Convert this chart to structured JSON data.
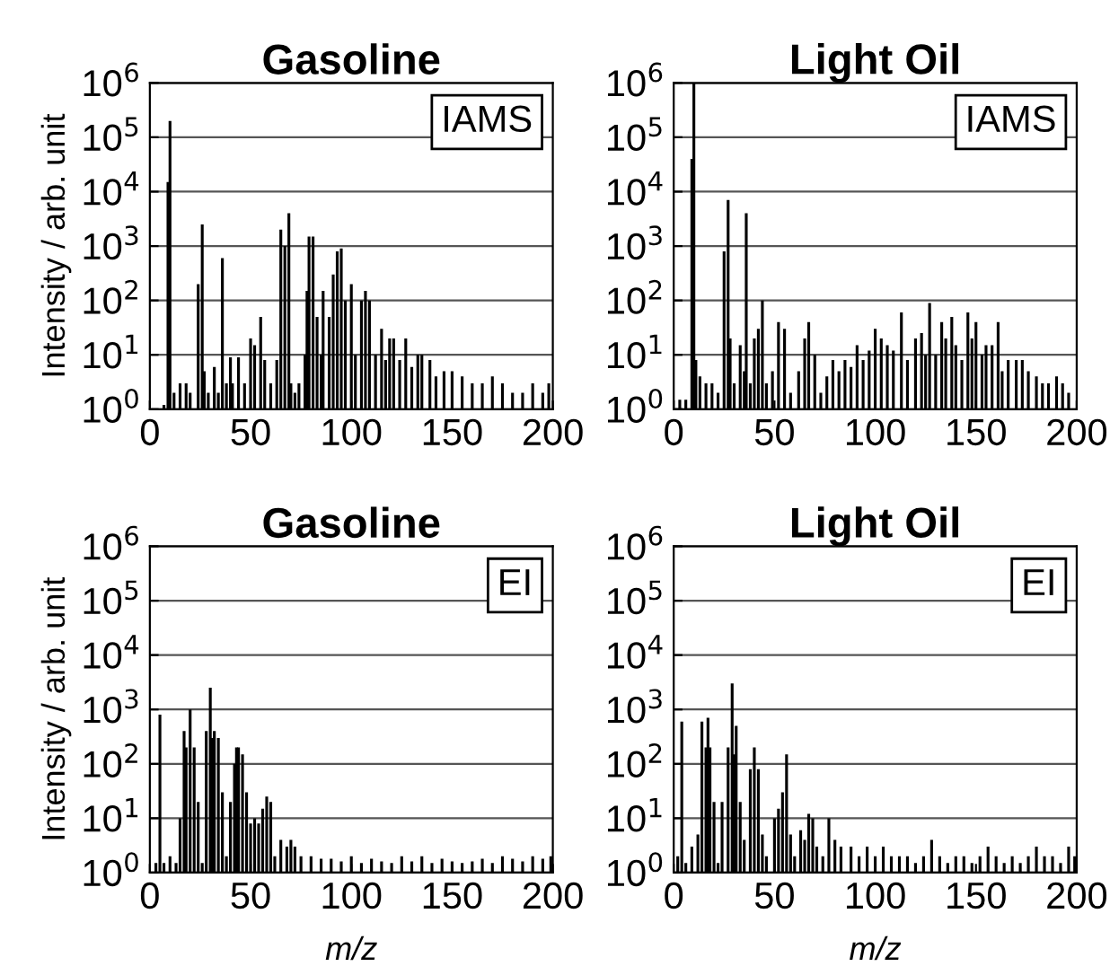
{
  "chart_data": [
    {
      "type": "bar",
      "title": "Gasoline",
      "ylabel": "Intensity / arb. unit",
      "annotations": [
        "IAMS"
      ],
      "log": true,
      "grid": "y",
      "color": "#000000",
      "xlim": [
        0,
        200
      ],
      "xticks": [
        0,
        50,
        100,
        150,
        200
      ],
      "ylim": [
        1,
        1000000
      ],
      "yticks": [
        {
          "value": 1,
          "label": "10$^{0}$"
        },
        {
          "value": 10,
          "label": "10$^{1}$"
        },
        {
          "value": 100,
          "label": "10$^{2}$"
        },
        {
          "value": 1000,
          "label": "10$^{3}$"
        },
        {
          "value": 10000,
          "label": "10$^{4}$"
        },
        {
          "value": 100000,
          "label": "10$^{5}$"
        },
        {
          "value": 1000000,
          "label": "10$^{6}$"
        }
      ],
      "x": [
        7,
        9,
        10,
        12,
        15,
        18,
        20,
        24,
        26,
        27,
        29,
        32,
        34,
        36,
        38,
        40,
        41,
        44,
        47,
        50,
        52,
        55,
        57,
        60,
        63,
        65,
        67,
        69,
        70,
        72,
        74,
        77,
        78,
        79,
        81,
        83,
        85,
        86,
        89,
        91,
        93,
        95,
        97,
        100,
        102,
        105,
        107,
        109,
        112,
        115,
        117,
        119,
        121,
        124,
        127,
        130,
        133,
        135,
        139,
        142,
        146,
        150,
        155,
        160,
        165,
        170,
        175,
        180,
        185,
        190,
        195,
        198
      ],
      "values": [
        1.2,
        15000,
        200000,
        2,
        3,
        3,
        2,
        200,
        2500,
        5,
        2,
        6,
        2,
        600,
        3,
        9,
        3,
        9,
        3,
        20,
        15,
        50,
        8,
        3,
        8,
        2000,
        1000,
        4000,
        3,
        2,
        3,
        10,
        150,
        1500,
        1500,
        50,
        10,
        150,
        50,
        300,
        800,
        900,
        100,
        200,
        10,
        100,
        150,
        100,
        10,
        30,
        8,
        20,
        20,
        8,
        20,
        6,
        10,
        10,
        8,
        4,
        5,
        5,
        4,
        3,
        3,
        4,
        3,
        2,
        2,
        3,
        2,
        3
      ]
    },
    {
      "type": "bar",
      "title": "Light Oil",
      "annotations": [
        "IAMS"
      ],
      "log": true,
      "grid": "y",
      "color": "#000000",
      "xlim": [
        0,
        200
      ],
      "xticks": [
        0,
        50,
        100,
        150,
        200
      ],
      "ylim": [
        1,
        1000000
      ],
      "yticks": [
        {
          "value": 1,
          "label": "10$^{0}$"
        },
        {
          "value": 10,
          "label": "10$^{1}$"
        },
        {
          "value": 100,
          "label": "10$^{2}$"
        },
        {
          "value": 1000,
          "label": "10$^{3}$"
        },
        {
          "value": 10000,
          "label": "10$^{4}$"
        },
        {
          "value": 100000,
          "label": "10$^{5}$"
        },
        {
          "value": 1000000,
          "label": "10$^{6}$"
        }
      ],
      "x": [
        3,
        6,
        9,
        10,
        11,
        13,
        16,
        19,
        22,
        25,
        27,
        28,
        30,
        33,
        35,
        36,
        38,
        40,
        42,
        44,
        46,
        49,
        52,
        55,
        58,
        62,
        65,
        67,
        70,
        73,
        76,
        79,
        82,
        85,
        88,
        91,
        94,
        97,
        100,
        103,
        106,
        109,
        113,
        116,
        120,
        123,
        125,
        127,
        130,
        133,
        135,
        138,
        140,
        143,
        146,
        148,
        150,
        153,
        155,
        158,
        161,
        163,
        166,
        170,
        173,
        176,
        180,
        183,
        186,
        190,
        193,
        196
      ],
      "values": [
        1.5,
        1.5,
        40000,
        1000000,
        8,
        4,
        3,
        3,
        2,
        800,
        7000,
        20,
        3,
        15,
        5,
        4000,
        3,
        20,
        30,
        100,
        3,
        5,
        40,
        30,
        2,
        5,
        20,
        40,
        10,
        2,
        4,
        8,
        5,
        8,
        6,
        15,
        8,
        12,
        30,
        20,
        15,
        12,
        60,
        8,
        20,
        25,
        10,
        90,
        10,
        40,
        20,
        50,
        15,
        8,
        60,
        20,
        40,
        10,
        15,
        15,
        40,
        5,
        8,
        8,
        8,
        5,
        4,
        3,
        3,
        4,
        3,
        2
      ]
    },
    {
      "type": "bar",
      "title": "Gasoline",
      "ylabel": "Intensity / arb. unit",
      "xlabel": "m/z",
      "annotations": [
        "EI"
      ],
      "log": true,
      "grid": "y",
      "color": "#000000",
      "xlim": [
        0,
        200
      ],
      "xticks": [
        0,
        50,
        100,
        150,
        200
      ],
      "ylim": [
        1,
        1000000
      ],
      "yticks": [
        {
          "value": 1,
          "label": "10$^{0}$"
        },
        {
          "value": 10,
          "label": "10$^{1}$"
        },
        {
          "value": 100,
          "label": "10$^{2}$"
        },
        {
          "value": 1000,
          "label": "10$^{3}$"
        },
        {
          "value": 10000,
          "label": "10$^{4}$"
        },
        {
          "value": 100000,
          "label": "10$^{5}$"
        },
        {
          "value": 1000000,
          "label": "10$^{6}$"
        }
      ],
      "x": [
        3,
        5,
        7,
        10,
        13,
        15,
        17,
        18,
        20,
        22,
        24,
        26,
        28,
        30,
        31,
        32,
        34,
        36,
        38,
        40,
        42,
        43,
        44,
        46,
        48,
        50,
        52,
        54,
        56,
        58,
        60,
        62,
        65,
        68,
        70,
        72,
        75,
        80,
        85,
        90,
        95,
        100,
        105,
        110,
        115,
        120,
        125,
        130,
        135,
        140,
        145,
        150,
        155,
        160,
        165,
        170,
        175,
        180,
        185,
        190,
        195,
        199
      ],
      "values": [
        1.5,
        800,
        1.5,
        2,
        1.5,
        10,
        400,
        200,
        1000,
        200,
        20,
        1.5,
        400,
        2500,
        300,
        400,
        300,
        30,
        2,
        20,
        100,
        200,
        200,
        150,
        30,
        8,
        10,
        8,
        15,
        25,
        20,
        2,
        4,
        3,
        4,
        3,
        2,
        2,
        1.8,
        1.8,
        1.6,
        2,
        1.5,
        1.8,
        1.6,
        1.5,
        2,
        1.6,
        2,
        1.5,
        1.8,
        1.6,
        1.5,
        1.6,
        1.8,
        1.5,
        2,
        1.8,
        1.6,
        2,
        1.8,
        2
      ]
    },
    {
      "type": "bar",
      "title": "Light Oil",
      "xlabel": "m/z",
      "annotations": [
        "EI"
      ],
      "log": true,
      "grid": "y",
      "color": "#000000",
      "xlim": [
        0,
        200
      ],
      "xticks": [
        0,
        50,
        100,
        150,
        200
      ],
      "ylim": [
        1,
        1000000
      ],
      "yticks": [
        {
          "value": 1,
          "label": "10$^{0}$"
        },
        {
          "value": 10,
          "label": "10$^{1}$"
        },
        {
          "value": 100,
          "label": "10$^{2}$"
        },
        {
          "value": 1000,
          "label": "10$^{3}$"
        },
        {
          "value": 10000,
          "label": "10$^{4}$"
        },
        {
          "value": 100000,
          "label": "10$^{5}$"
        },
        {
          "value": 1000000,
          "label": "10$^{6}$"
        }
      ],
      "x": [
        2,
        4,
        6,
        9,
        12,
        14,
        16,
        17,
        18,
        20,
        22,
        24,
        27,
        29,
        30,
        31,
        33,
        35,
        38,
        40,
        42,
        44,
        46,
        50,
        52,
        54,
        56,
        58,
        60,
        63,
        65,
        67,
        69,
        71,
        74,
        77,
        80,
        83,
        88,
        92,
        96,
        100,
        104,
        108,
        112,
        116,
        120,
        124,
        128,
        132,
        136,
        140,
        144,
        148,
        152,
        156,
        160,
        164,
        168,
        172,
        176,
        180,
        184,
        188,
        192,
        196,
        199
      ],
      "values": [
        2,
        600,
        1.5,
        3,
        5,
        600,
        200,
        700,
        200,
        20,
        1.5,
        20,
        200,
        3000,
        150,
        500,
        20,
        4,
        80,
        200,
        80,
        5,
        2,
        10,
        15,
        30,
        150,
        5,
        2,
        6,
        4,
        12,
        10,
        3,
        2,
        10,
        4,
        3,
        3,
        2,
        3,
        2,
        3,
        2,
        2,
        2,
        1.5,
        2,
        4,
        2,
        1.5,
        2,
        2,
        1.5,
        2,
        3,
        2,
        1.5,
        2,
        1.5,
        2,
        3,
        2,
        2,
        1.5,
        3,
        2
      ]
    }
  ]
}
